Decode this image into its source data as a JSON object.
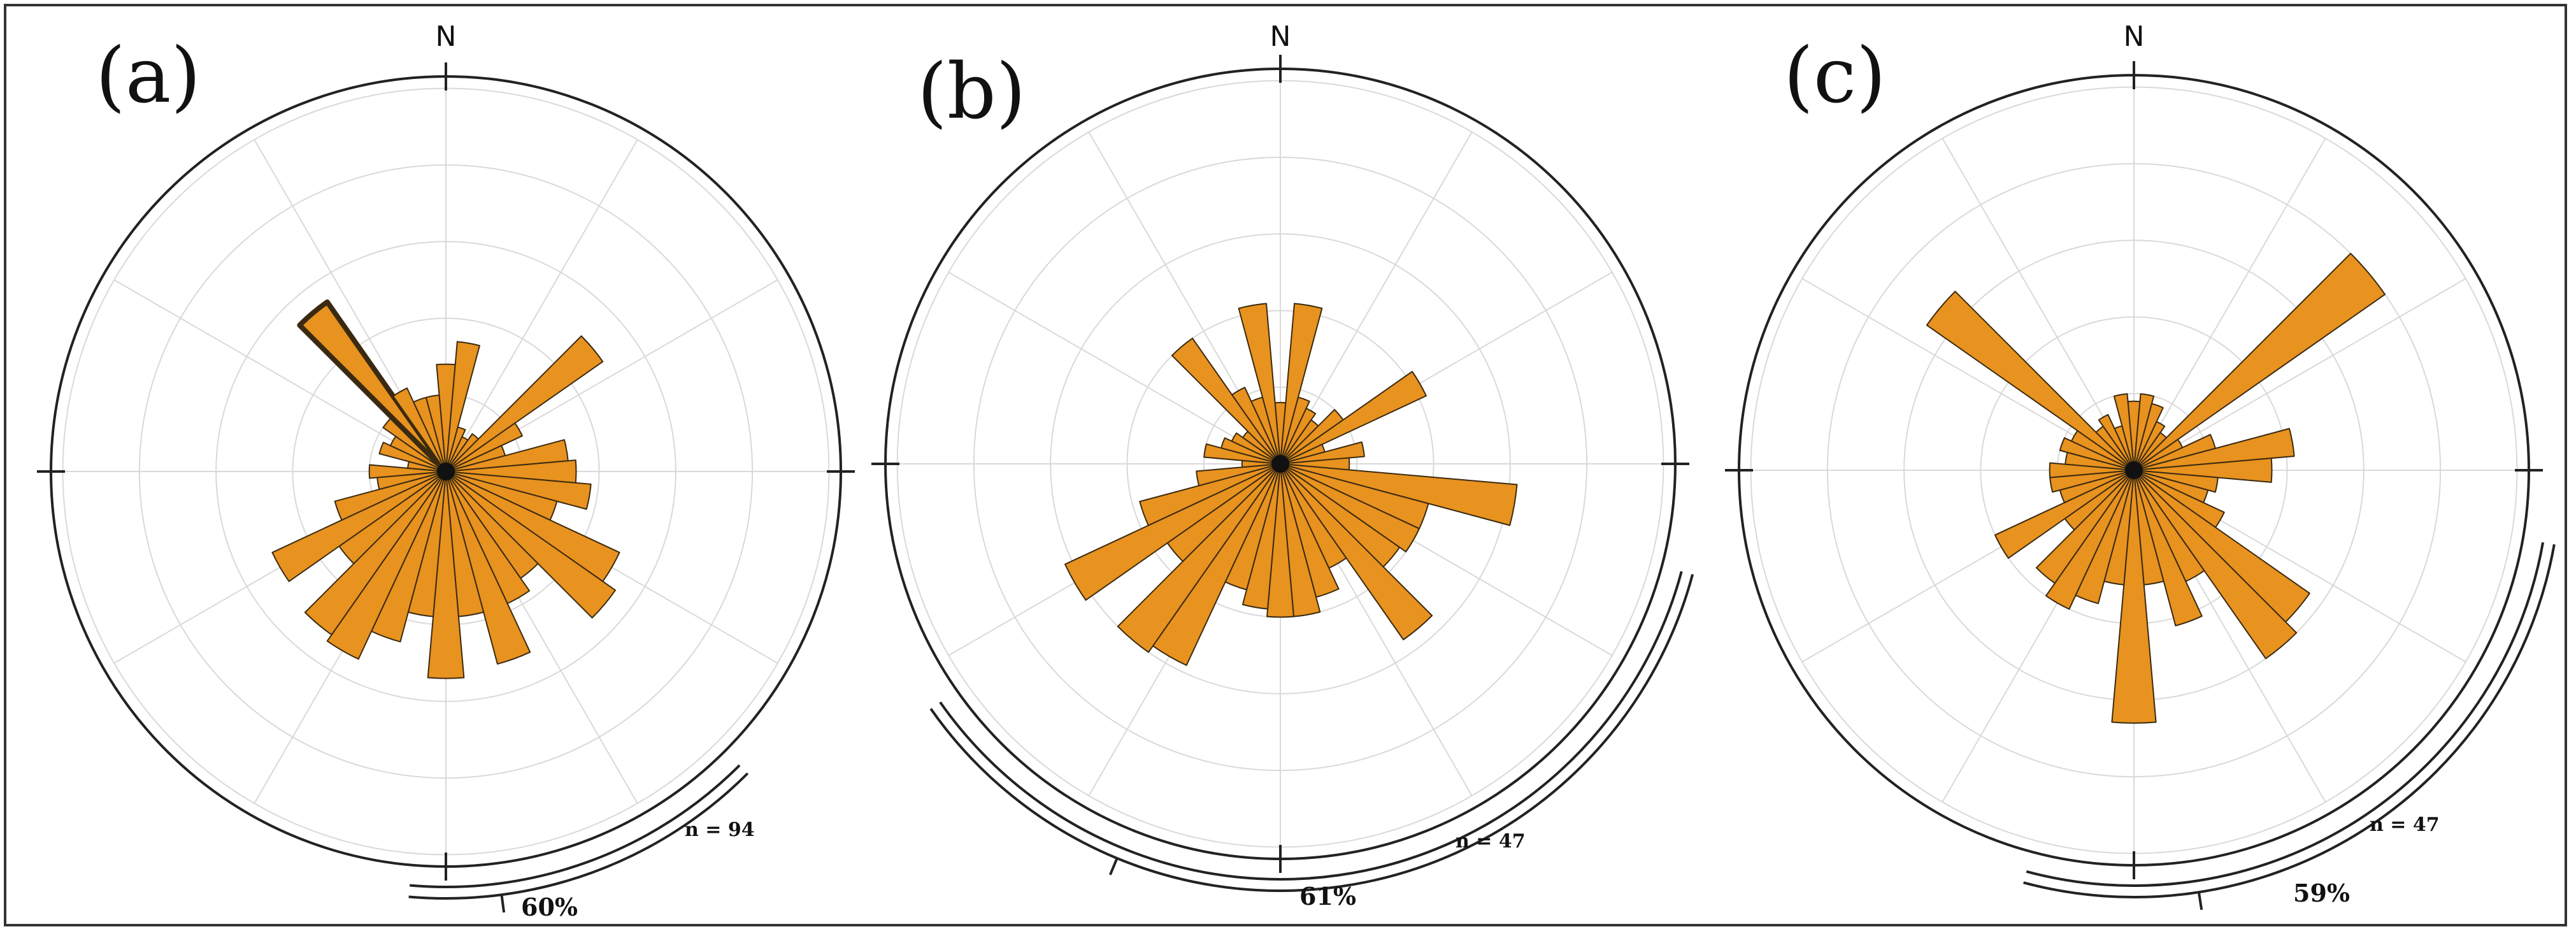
{
  "figure": {
    "colors": {
      "petal_fill": "#E8921F",
      "petal_stroke": "#3a2a10",
      "grid": "#d9d9d9",
      "outline": "#222222"
    }
  },
  "chart_data": [
    {
      "type": "rose",
      "panel_label": "(a)",
      "north_label": "N",
      "n_label": "n = 94",
      "percent_label": "60%",
      "bin_width_deg": 10,
      "radial_max_fraction": 1.0,
      "grid_rings": 5,
      "grid_spokes_deg": 30,
      "highlight_bin_deg": 320,
      "mean_arc_deg": [
        135,
        185
      ],
      "bins": [
        {
          "dir": 0,
          "value": 0.28
        },
        {
          "dir": 10,
          "value": 0.34
        },
        {
          "dir": 20,
          "value": 0.12
        },
        {
          "dir": 30,
          "value": 0.1
        },
        {
          "dir": 40,
          "value": 0.12
        },
        {
          "dir": 50,
          "value": 0.5
        },
        {
          "dir": 60,
          "value": 0.22
        },
        {
          "dir": 70,
          "value": 0.16
        },
        {
          "dir": 80,
          "value": 0.32
        },
        {
          "dir": 90,
          "value": 0.34
        },
        {
          "dir": 100,
          "value": 0.38
        },
        {
          "dir": 110,
          "value": 0.3
        },
        {
          "dir": 120,
          "value": 0.5
        },
        {
          "dir": 130,
          "value": 0.54
        },
        {
          "dir": 140,
          "value": 0.34
        },
        {
          "dir": 150,
          "value": 0.38
        },
        {
          "dir": 160,
          "value": 0.52
        },
        {
          "dir": 170,
          "value": 0.38
        },
        {
          "dir": 180,
          "value": 0.54
        },
        {
          "dir": 190,
          "value": 0.38
        },
        {
          "dir": 200,
          "value": 0.46
        },
        {
          "dir": 210,
          "value": 0.54
        },
        {
          "dir": 220,
          "value": 0.52
        },
        {
          "dir": 230,
          "value": 0.34
        },
        {
          "dir": 240,
          "value": 0.5
        },
        {
          "dir": 250,
          "value": 0.3
        },
        {
          "dir": 260,
          "value": 0.18
        },
        {
          "dir": 270,
          "value": 0.2
        },
        {
          "dir": 280,
          "value": 0.1
        },
        {
          "dir": 290,
          "value": 0.18
        },
        {
          "dir": 300,
          "value": 0.16
        },
        {
          "dir": 310,
          "value": 0.2
        },
        {
          "dir": 320,
          "value": 0.54
        },
        {
          "dir": 330,
          "value": 0.24
        },
        {
          "dir": 340,
          "value": 0.2
        },
        {
          "dir": 350,
          "value": 0.2
        }
      ]
    },
    {
      "type": "rose",
      "panel_label": "(b)",
      "north_label": "N",
      "n_label": "n = 47",
      "percent_label": "61%",
      "bin_width_deg": 10,
      "radial_max_fraction": 1.0,
      "grid_rings": 5,
      "grid_spokes_deg": 30,
      "highlight_bin_deg": null,
      "mean_arc_deg": [
        105,
        235
      ],
      "bins": [
        {
          "dir": 0,
          "value": 0.16
        },
        {
          "dir": 10,
          "value": 0.42
        },
        {
          "dir": 20,
          "value": 0.18
        },
        {
          "dir": 30,
          "value": 0.16
        },
        {
          "dir": 40,
          "value": 0.14
        },
        {
          "dir": 50,
          "value": 0.2
        },
        {
          "dir": 60,
          "value": 0.42
        },
        {
          "dir": 70,
          "value": 0.12
        },
        {
          "dir": 80,
          "value": 0.22
        },
        {
          "dir": 90,
          "value": 0.18
        },
        {
          "dir": 100,
          "value": 0.62
        },
        {
          "dir": 110,
          "value": 0.4
        },
        {
          "dir": 120,
          "value": 0.4
        },
        {
          "dir": 130,
          "value": 0.38
        },
        {
          "dir": 140,
          "value": 0.56
        },
        {
          "dir": 150,
          "value": 0.3
        },
        {
          "dir": 160,
          "value": 0.36
        },
        {
          "dir": 170,
          "value": 0.4
        },
        {
          "dir": 180,
          "value": 0.4
        },
        {
          "dir": 190,
          "value": 0.38
        },
        {
          "dir": 200,
          "value": 0.34
        },
        {
          "dir": 210,
          "value": 0.58
        },
        {
          "dir": 220,
          "value": 0.6
        },
        {
          "dir": 230,
          "value": 0.36
        },
        {
          "dir": 240,
          "value": 0.62
        },
        {
          "dir": 250,
          "value": 0.38
        },
        {
          "dir": 260,
          "value": 0.22
        },
        {
          "dir": 270,
          "value": 0.1
        },
        {
          "dir": 280,
          "value": 0.2
        },
        {
          "dir": 290,
          "value": 0.16
        },
        {
          "dir": 300,
          "value": 0.14
        },
        {
          "dir": 310,
          "value": 0.12
        },
        {
          "dir": 320,
          "value": 0.4
        },
        {
          "dir": 330,
          "value": 0.22
        },
        {
          "dir": 340,
          "value": 0.18
        },
        {
          "dir": 350,
          "value": 0.42
        }
      ]
    },
    {
      "type": "rose",
      "panel_label": "(c)",
      "north_label": "N",
      "n_label": "n = 47",
      "percent_label": "59%",
      "bin_width_deg": 10,
      "radial_max_fraction": 1.0,
      "grid_rings": 5,
      "grid_spokes_deg": 30,
      "highlight_bin_deg": null,
      "mean_arc_deg": [
        100,
        195
      ],
      "bins": [
        {
          "dir": 0,
          "value": 0.18
        },
        {
          "dir": 10,
          "value": 0.2
        },
        {
          "dir": 20,
          "value": 0.18
        },
        {
          "dir": 30,
          "value": 0.14
        },
        {
          "dir": 40,
          "value": 0.12
        },
        {
          "dir": 50,
          "value": 0.8
        },
        {
          "dir": 60,
          "value": 0.14
        },
        {
          "dir": 70,
          "value": 0.22
        },
        {
          "dir": 80,
          "value": 0.42
        },
        {
          "dir": 90,
          "value": 0.36
        },
        {
          "dir": 100,
          "value": 0.22
        },
        {
          "dir": 110,
          "value": 0.2
        },
        {
          "dir": 120,
          "value": 0.26
        },
        {
          "dir": 130,
          "value": 0.56
        },
        {
          "dir": 140,
          "value": 0.6
        },
        {
          "dir": 150,
          "value": 0.32
        },
        {
          "dir": 160,
          "value": 0.42
        },
        {
          "dir": 170,
          "value": 0.3
        },
        {
          "dir": 180,
          "value": 0.66
        },
        {
          "dir": 190,
          "value": 0.3
        },
        {
          "dir": 200,
          "value": 0.36
        },
        {
          "dir": 210,
          "value": 0.4
        },
        {
          "dir": 220,
          "value": 0.36
        },
        {
          "dir": 230,
          "value": 0.22
        },
        {
          "dir": 240,
          "value": 0.4
        },
        {
          "dir": 250,
          "value": 0.2
        },
        {
          "dir": 260,
          "value": 0.22
        },
        {
          "dir": 270,
          "value": 0.22
        },
        {
          "dir": 280,
          "value": 0.18
        },
        {
          "dir": 290,
          "value": 0.2
        },
        {
          "dir": 300,
          "value": 0.18
        },
        {
          "dir": 310,
          "value": 0.66
        },
        {
          "dir": 320,
          "value": 0.14
        },
        {
          "dir": 330,
          "value": 0.16
        },
        {
          "dir": 340,
          "value": 0.12
        },
        {
          "dir": 350,
          "value": 0.2
        }
      ]
    }
  ]
}
